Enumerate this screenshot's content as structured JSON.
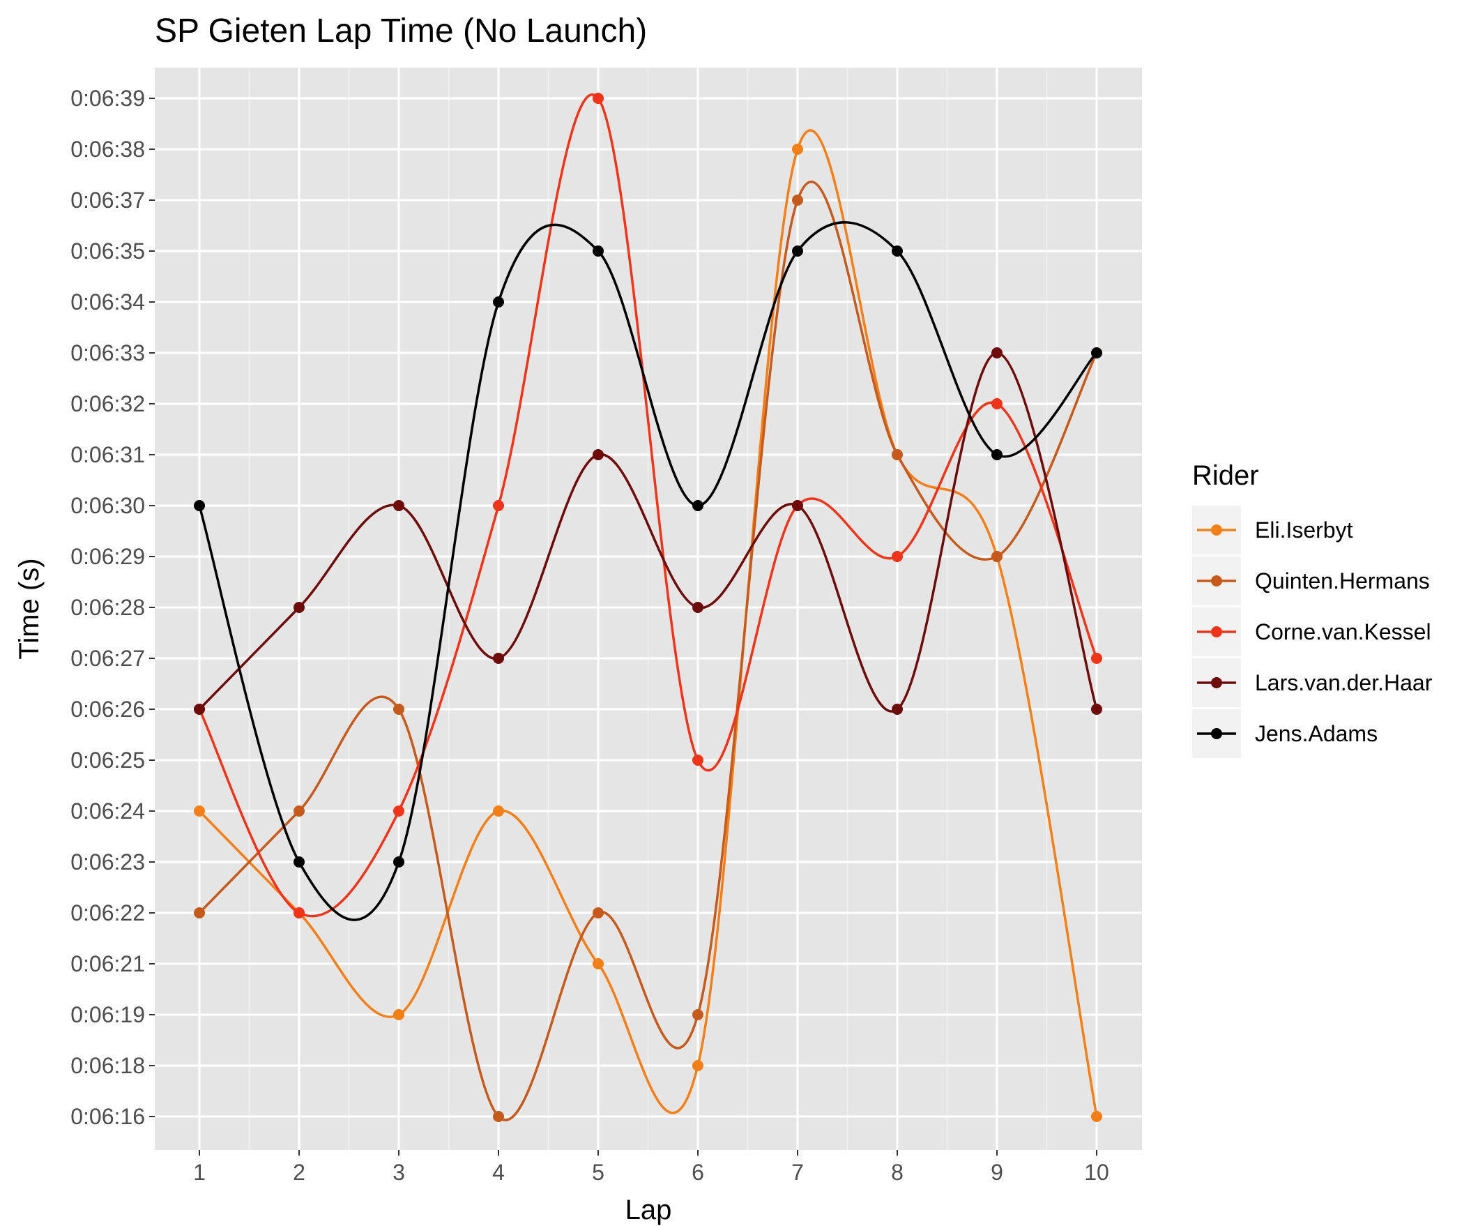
{
  "chart_data": {
    "type": "line",
    "title": "SP Gieten Lap Time (No Launch)",
    "xlabel": "Lap",
    "ylabel": "Time (s)",
    "x": [
      1,
      2,
      3,
      4,
      5,
      6,
      7,
      8,
      9,
      10
    ],
    "y_ticks": [
      "0:06:16",
      "0:06:18",
      "0:06:19",
      "0:06:21",
      "0:06:22",
      "0:06:23",
      "0:06:24",
      "0:06:25",
      "0:06:26",
      "0:06:27",
      "0:06:28",
      "0:06:29",
      "0:06:30",
      "0:06:31",
      "0:06:32",
      "0:06:33",
      "0:06:34",
      "0:06:35",
      "0:06:37",
      "0:06:38",
      "0:06:39"
    ],
    "y_axis_note": "discrete ordered axis: each printed time label is one evenly spaced level",
    "series": [
      {
        "name": "Eli.Iserbyt",
        "color": "#F57F17",
        "values": [
          "0:06:24",
          "0:06:22",
          "0:06:19",
          "0:06:24",
          "0:06:21",
          "0:06:18",
          "0:06:38",
          "0:06:31",
          "0:06:29",
          "0:06:16"
        ]
      },
      {
        "name": "Quinten.Hermans",
        "color": "#C55A1C",
        "values": [
          "0:06:22",
          "0:06:24",
          "0:06:26",
          "0:06:16",
          "0:06:22",
          "0:06:19",
          "0:06:37",
          "0:06:31",
          "0:06:29",
          "0:06:33"
        ]
      },
      {
        "name": "Corne.van.Kessel",
        "color": "#F0341A",
        "values": [
          "0:06:26",
          "0:06:22",
          "0:06:24",
          "0:06:30",
          "0:06:39",
          "0:06:25",
          "0:06:30",
          "0:06:29",
          "0:06:32",
          "0:06:27"
        ]
      },
      {
        "name": "Lars.van.der.Haar",
        "color": "#6E0C0C",
        "values": [
          "0:06:26",
          "0:06:28",
          "0:06:30",
          "0:06:27",
          "0:06:31",
          "0:06:28",
          "0:06:30",
          "0:06:26",
          "0:06:33",
          "0:06:26"
        ]
      },
      {
        "name": "Jens.Adams",
        "color": "#000000",
        "values": [
          "0:06:30",
          "0:06:23",
          "0:06:23",
          "0:06:34",
          "0:06:35",
          "0:06:30",
          "0:06:35",
          "0:06:35",
          "0:06:31",
          "0:06:33"
        ]
      }
    ],
    "legend": {
      "title": "Rider",
      "position": "right"
    },
    "grid": true,
    "panel_color": "#E5E5E5"
  }
}
